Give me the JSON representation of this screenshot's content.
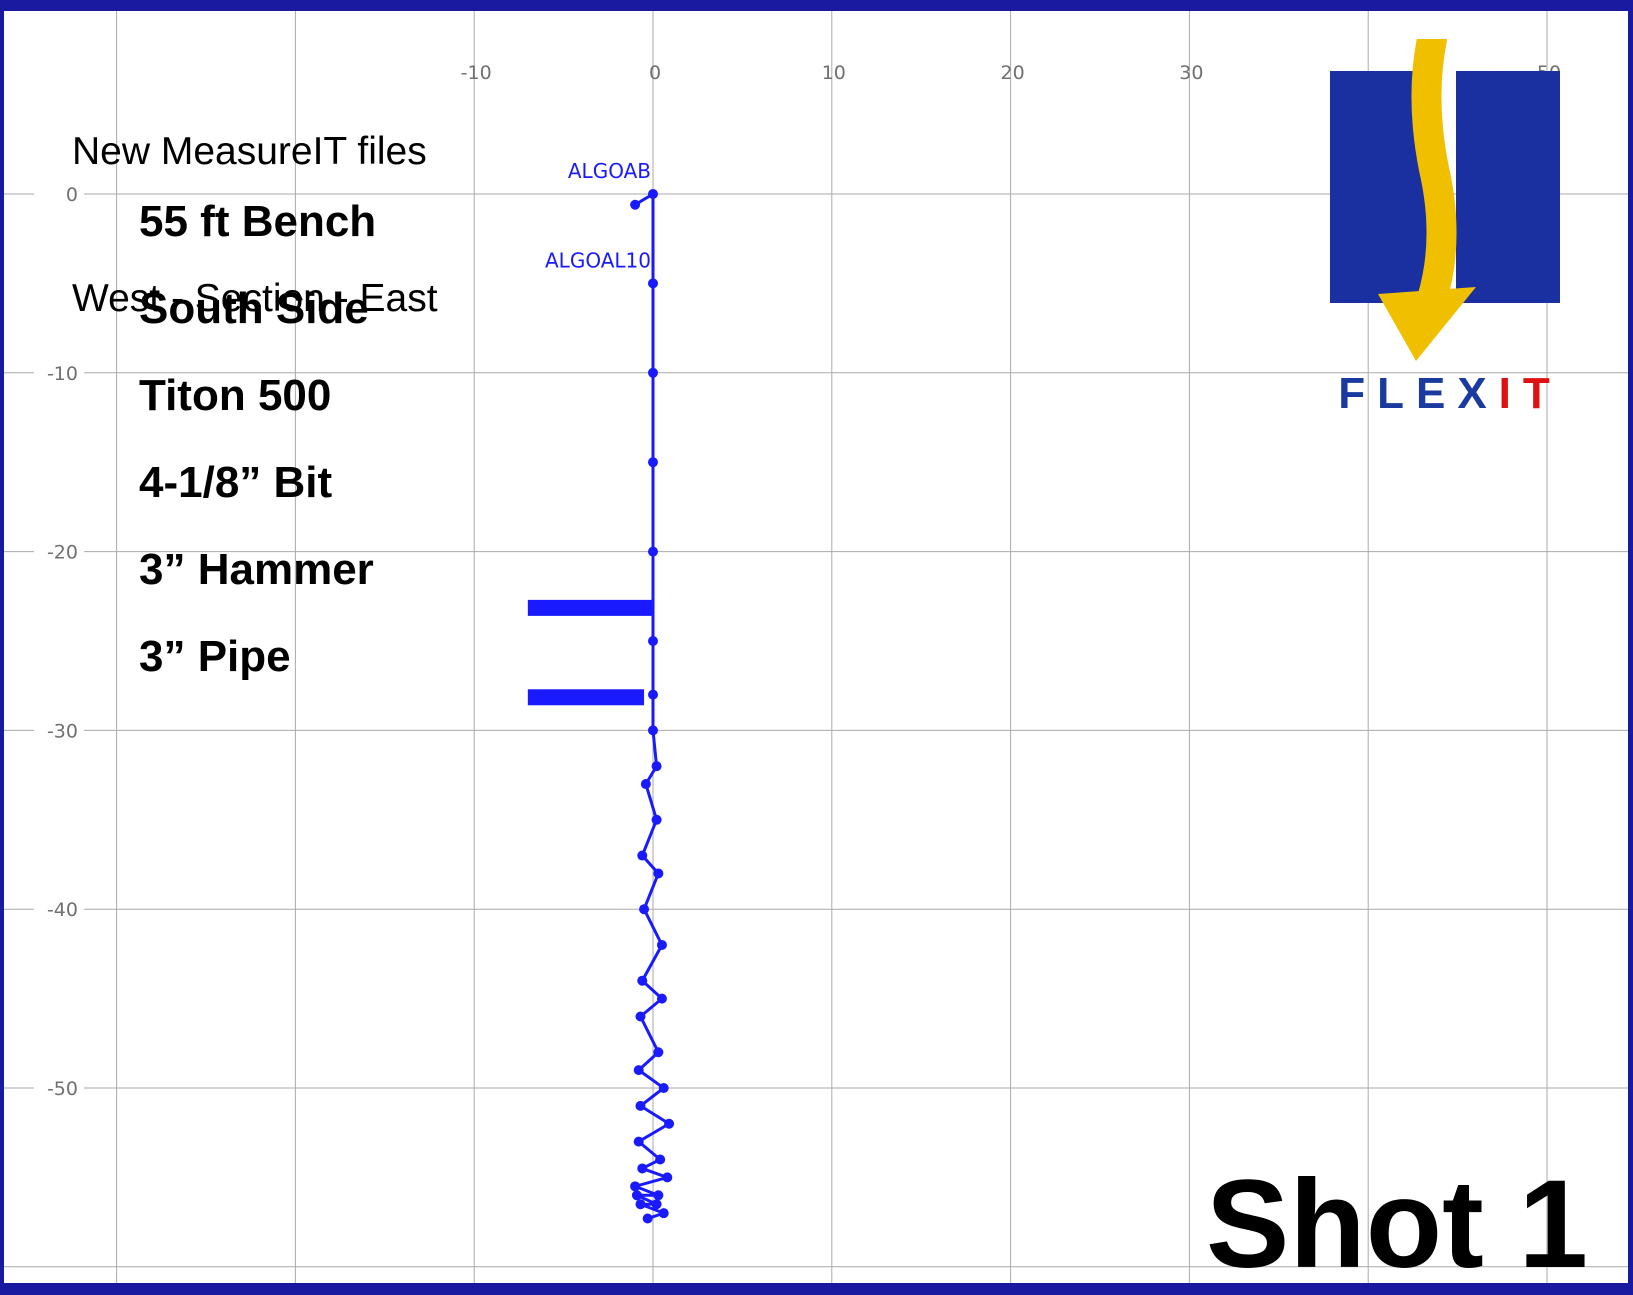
{
  "chart_data": {
    "type": "scatter",
    "title_lines": [
      "New MeasureIT files",
      "West - Section - East"
    ],
    "xlabel": "",
    "ylabel": "",
    "xlim": [
      -30,
      52
    ],
    "ylim": [
      -57,
      10
    ],
    "x_ticks": [
      -10,
      0,
      10,
      20,
      30,
      50
    ],
    "y_ticks": [
      0,
      -10,
      -20,
      -30,
      -40,
      -50
    ],
    "grid": true,
    "series_color": "#1a1aff",
    "point_labels": [
      {
        "text": "ALGOAB",
        "x": 0,
        "y": 0
      },
      {
        "text": "ALGOAL10",
        "x": 0,
        "y": -5
      }
    ],
    "series": [
      {
        "x": [
          -1,
          0,
          0,
          0,
          0,
          0,
          0,
          0,
          0,
          0.2,
          -0.4,
          0.2,
          -0.6,
          0.3,
          -0.5,
          0.5,
          -0.6,
          0.5,
          -0.7,
          0.3,
          -0.8,
          0.6,
          -0.7,
          0.9,
          -0.8,
          0.4,
          -0.6,
          0.8,
          -1.0,
          0.3,
          -0.9,
          0.2,
          -0.7,
          0.6,
          -0.3
        ],
        "y": [
          -0.6,
          0,
          -5,
          -10,
          -15,
          -20,
          -25,
          -28,
          -30,
          -32,
          -33,
          -35,
          -37,
          -38,
          -40,
          -42,
          -44,
          -45,
          -46,
          -48,
          -49,
          -50,
          -51,
          -52,
          -53,
          -54,
          -54.5,
          -55,
          -55.5,
          -56,
          -56,
          -56.5,
          -56.5,
          -57,
          -57.3
        ]
      }
    ],
    "notes": [
      "55 ft Bench",
      "South Side",
      "Titon 500",
      "4-1/8” Bit",
      "3” Hammer",
      "3” Pipe"
    ],
    "big_label": "Shot 1"
  },
  "logo": {
    "name": "flexit-logo",
    "text_blue": "FLEX",
    "text_red": "IT",
    "colors": {
      "square": "#1a2fa0",
      "arrow": "#f0c000",
      "red": "#e01010"
    }
  }
}
